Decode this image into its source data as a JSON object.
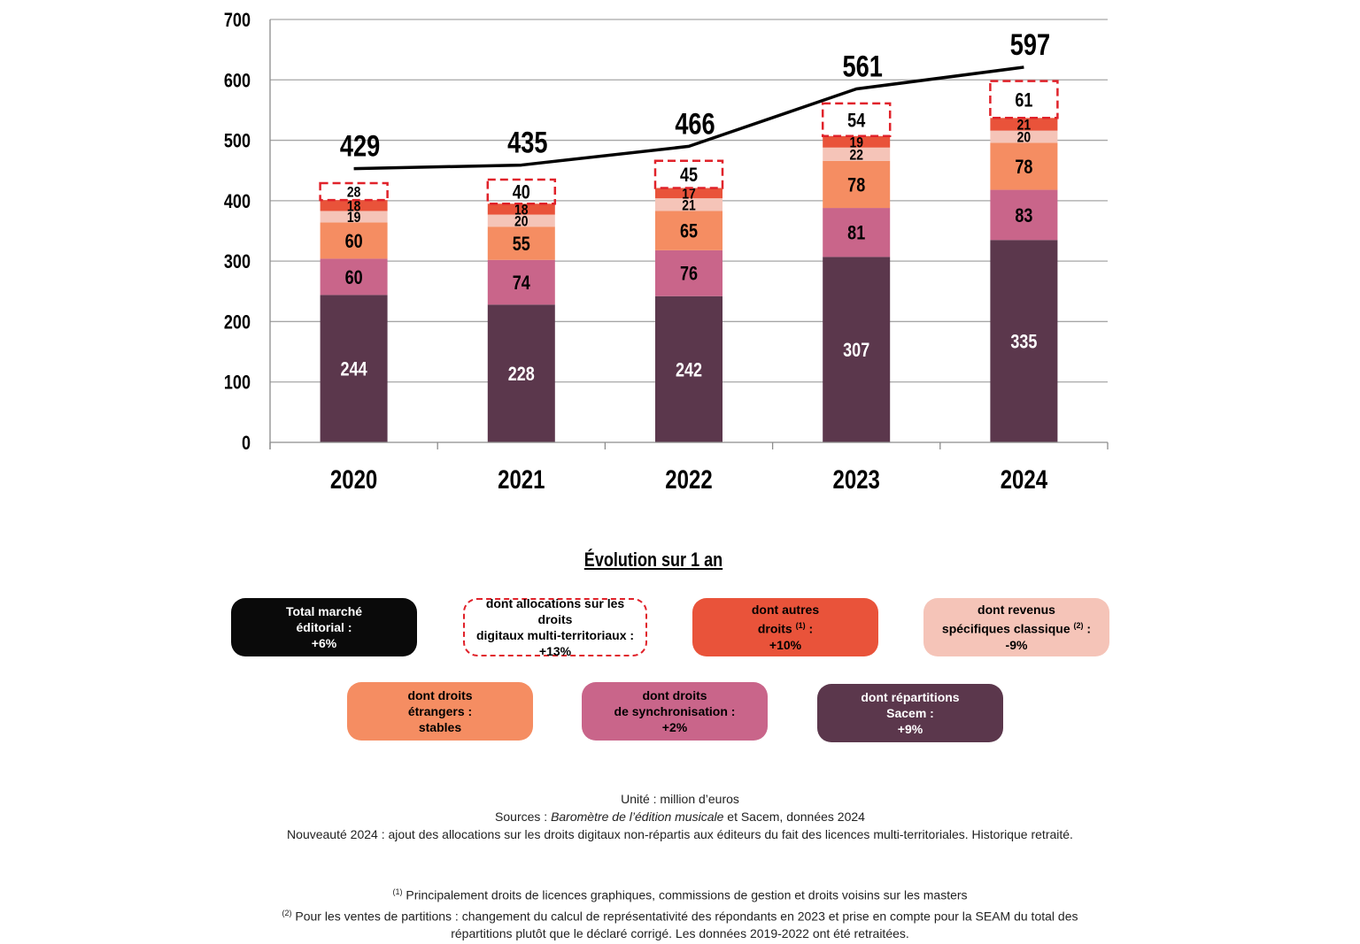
{
  "chart_data": {
    "type": "bar",
    "stacked": true,
    "categories": [
      "2020",
      "2021",
      "2022",
      "2023",
      "2024"
    ],
    "ylim": [
      0,
      700
    ],
    "yticks": [
      "0",
      "100",
      "200",
      "300",
      "400",
      "500",
      "600",
      "700"
    ],
    "grid": true,
    "series": [
      {
        "name": "dont répartitions Sacem",
        "color": "#5b374c",
        "label_color": "#ffffff",
        "values": [
          244,
          228,
          242,
          307,
          335
        ]
      },
      {
        "name": "dont droits de synchronisation",
        "color": "#c9658a",
        "label_color": "#000000",
        "values": [
          60,
          74,
          76,
          81,
          83
        ]
      },
      {
        "name": "dont droits étrangers",
        "color": "#f58d62",
        "label_color": "#000000",
        "values": [
          60,
          55,
          65,
          78,
          78
        ]
      },
      {
        "name": "dont revenus spécifiques classique",
        "color": "#f5c4b8",
        "label_color": "#000000",
        "values": [
          19,
          20,
          21,
          22,
          20
        ]
      },
      {
        "name": "dont autres droits",
        "color": "#e9533a",
        "label_color": "#000000",
        "values": [
          18,
          18,
          17,
          19,
          21
        ]
      },
      {
        "name": "dont allocations sur les droits digitaux multi-territoriaux",
        "color": "#e0222a",
        "label_color": "#000000",
        "dashed": true,
        "values": [
          28,
          40,
          45,
          54,
          61
        ]
      }
    ],
    "totals": {
      "name": "Total marché éditorial",
      "values": [
        429,
        435,
        466,
        561,
        597
      ],
      "labels": [
        "429",
        "435",
        "466",
        "561",
        "597"
      ],
      "color": "#000000"
    }
  },
  "evolution": {
    "title": "Évolution sur 1 an",
    "total": {
      "line1": "Total marché",
      "line2": "éditorial :",
      "value": "+6%"
    },
    "digital": {
      "line1": "dont allocations sur les droits",
      "line2": "digitaux multi-territoriaux :",
      "value": "+13%"
    },
    "autres": {
      "line1": "dont autres",
      "line2": "droits",
      "sup": "(1)",
      "line2b": " :",
      "value": "+10%"
    },
    "classique": {
      "line1": "dont revenus",
      "line2": "spécifiques classique",
      "sup": "(2)",
      "line2b": " :",
      "value": "-9%"
    },
    "etrangers": {
      "line1": "dont droits",
      "line2": "étrangers :",
      "value": "stables"
    },
    "synchro": {
      "line1": "dont droits",
      "line2": "de synchronisation :",
      "value": "+2%"
    },
    "sacem": {
      "line1": "dont répartitions",
      "line2": "Sacem :",
      "value": "+9%"
    }
  },
  "notes": {
    "unit": "Unité : million d’euros",
    "sources_prefix": "Sources : ",
    "sources_italic": "Baromètre de l’édition musicale",
    "sources_suffix": " et Sacem, données 2024",
    "nouveaute": "Nouveauté 2024 : ajout des allocations sur les droits digitaux non-répartis aux éditeurs du fait des licences multi-territoriales. Historique retraité.",
    "fn1_mark": "(1)",
    "fn1": " Principalement droits de licences graphiques, commissions de gestion et droits voisins sur les masters",
    "fn2_mark": "(2)",
    "fn2_line1": " Pour les ventes de partitions : changement du calcul de représentativité des répondants en 2023 et prise en compte pour la SEAM du total des",
    "fn2_line2": "répartitions plutôt que le déclaré corrigé. Les données 2019-2022 ont été retraitées."
  }
}
